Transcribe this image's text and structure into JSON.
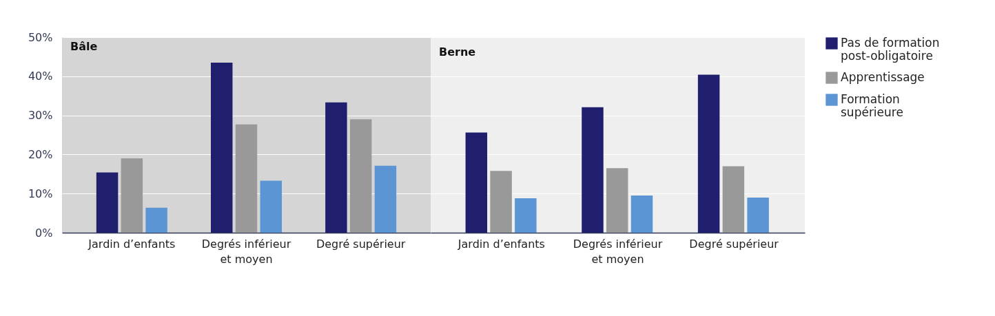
{
  "chart_data": [
    {
      "type": "bar",
      "title": "Bâle",
      "categories": [
        "Jardin d’enfants",
        "Degrés inférieur et moyen",
        "Degré supérieur"
      ],
      "series": [
        {
          "color": "#1f1f6e",
          "values": [
            15.4,
            43.5,
            33.3
          ]
        },
        {
          "color": "#999999",
          "values": [
            19.0,
            27.7,
            29.0
          ]
        },
        {
          "color": "#5b95d3",
          "values": [
            6.4,
            13.3,
            17.1
          ]
        }
      ],
      "ylim": [
        0,
        50
      ],
      "yticks": [
        {
          "value": 0,
          "label": "0%"
        },
        {
          "value": 10,
          "label": "10%"
        },
        {
          "value": 20,
          "label": "20%"
        },
        {
          "value": 30,
          "label": "30%"
        },
        {
          "value": 40,
          "label": "40%"
        },
        {
          "value": 50,
          "label": "50%"
        }
      ],
      "grid": "y"
    },
    {
      "type": "bar",
      "title": "Berne",
      "categories": [
        "Jardin d’enfants",
        "Degrés inférieur et moyen",
        "Degré supérieur"
      ],
      "series": [
        {
          "name": "Pas de formation post-obligatoire",
          "color": "#1f1f6e",
          "values": [
            25.6,
            32.1,
            40.4
          ]
        },
        {
          "name": "Apprentissage",
          "color": "#999999",
          "values": [
            15.8,
            16.5,
            17.0
          ]
        },
        {
          "name": "Formation supérieure",
          "color": "#5b95d3",
          "values": [
            8.8,
            9.5,
            9.0
          ]
        }
      ],
      "ylim": [
        0,
        50
      ],
      "yticks": [
        0,
        10,
        20,
        30,
        40,
        50
      ],
      "grid": "y",
      "legend": "right",
      "tick_labels": "x"
    }
  ]
}
